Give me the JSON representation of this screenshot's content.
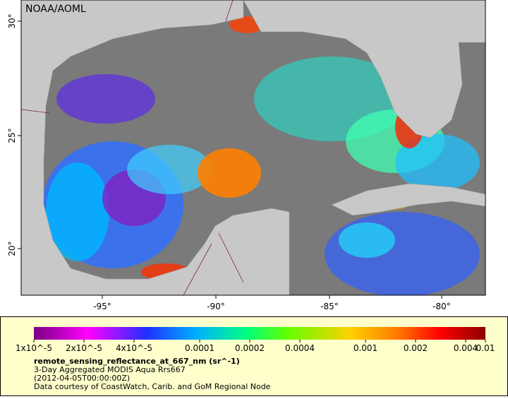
{
  "map": {
    "credit": "NOAA/AOML",
    "x_ticks": [
      "-95°",
      "-90°",
      "-85°",
      "-80°"
    ],
    "y_ticks": [
      "30°",
      "25°",
      "20°"
    ]
  },
  "legend": {
    "colorbar_labels": [
      "1x10^-5",
      "2x10^-5",
      "4x10^-5",
      "0.0001",
      "0.0002",
      "0.0004",
      "0.001",
      "0.002",
      "0.004",
      "0.01"
    ],
    "title": "remote_sensing_reflectance_at_667_nm (sr^-1)",
    "lines": [
      "3-Day Aggregated MODIS Aqua Rrs667",
      "(2012-04-05T00:00:00Z)",
      "Data courtesy of CoastWatch, Carib. and GoM Regional Node"
    ]
  }
}
